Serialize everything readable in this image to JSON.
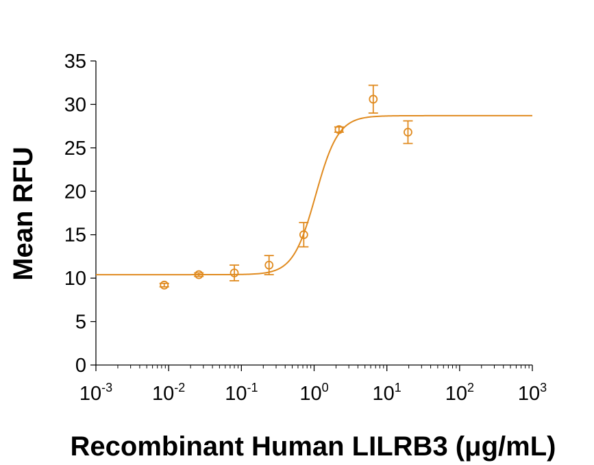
{
  "chart_data": {
    "type": "scatter",
    "title": "",
    "xlabel": "Recombinant Human LILRB3 (μg/mL)",
    "ylabel": "Mean RFU",
    "x_scale": "log",
    "xlim": [
      0.001,
      1000
    ],
    "ylim": [
      0,
      35
    ],
    "x_ticks": [
      {
        "value": 0.001,
        "base": "10",
        "exp": "-3"
      },
      {
        "value": 0.01,
        "base": "10",
        "exp": "-2"
      },
      {
        "value": 0.1,
        "base": "10",
        "exp": "-1"
      },
      {
        "value": 1,
        "base": "10",
        "exp": "0"
      },
      {
        "value": 10,
        "base": "10",
        "exp": "1"
      },
      {
        "value": 100,
        "base": "10",
        "exp": "2"
      },
      {
        "value": 1000,
        "base": "10",
        "exp": "3"
      }
    ],
    "y_ticks": [
      "0",
      "5",
      "10",
      "15",
      "20",
      "25",
      "30",
      "35"
    ],
    "grid": false,
    "color": "#E08A1E",
    "series": [
      {
        "points": [
          {
            "x": 0.0087,
            "y": 9.2,
            "err": 0.2
          },
          {
            "x": 0.026,
            "y": 10.4,
            "err": 0.2
          },
          {
            "x": 0.08,
            "y": 10.6,
            "err": 0.9
          },
          {
            "x": 0.24,
            "y": 11.5,
            "err": 1.1
          },
          {
            "x": 0.72,
            "y": 15.0,
            "err": 1.4
          },
          {
            "x": 2.2,
            "y": 27.1,
            "err": 0.3
          },
          {
            "x": 6.5,
            "y": 30.6,
            "err": 1.6
          },
          {
            "x": 19.5,
            "y": 26.8,
            "err": 1.3
          }
        ],
        "fit": {
          "type": "4PL",
          "bottom": 10.4,
          "top": 28.7,
          "ec50": 1.05,
          "hill": 2.8
        }
      }
    ]
  }
}
